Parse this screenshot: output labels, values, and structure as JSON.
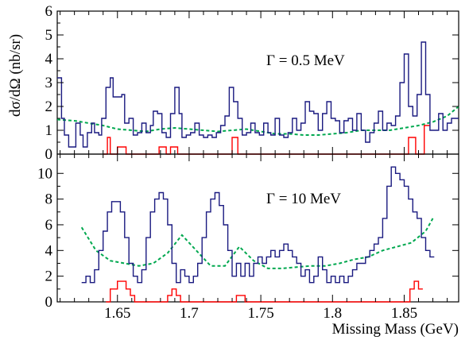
{
  "chart_data": {
    "type": "line",
    "xlabel": "Missing Mass (GeV)",
    "ylabel": "dσ/dΩ (nb/sr)",
    "xlim": [
      1.608,
      1.888
    ],
    "x_ticks": [
      1.65,
      1.7,
      1.75,
      1.8,
      1.85
    ],
    "x_tick_labels": [
      "1.65",
      "1.7",
      "1.75",
      "1.8",
      "1.85"
    ],
    "grid": false,
    "colors": {
      "data": "#1a1a80",
      "background": "#ff0000",
      "fit": "#00a84f"
    },
    "panels": [
      {
        "label": "Γ = 0.5 MeV",
        "ylim": [
          0,
          6
        ],
        "y_ticks": [
          0,
          1,
          2,
          3,
          4,
          5,
          6
        ],
        "y_tick_labels": [
          "0",
          "1",
          "2",
          "3",
          "4",
          "5",
          "6"
        ],
        "series": [
          {
            "role": "data",
            "style": "step",
            "x": [
              1.608,
              1.611,
              1.613,
              1.616,
              1.619,
              1.621,
              1.624,
              1.626,
              1.629,
              1.632,
              1.634,
              1.637,
              1.639,
              1.642,
              1.645,
              1.647,
              1.65,
              1.653,
              1.655,
              1.658,
              1.661,
              1.664,
              1.667,
              1.67,
              1.673,
              1.675,
              1.678,
              1.681,
              1.684,
              1.687,
              1.69,
              1.693,
              1.695,
              1.698,
              1.701,
              1.704,
              1.707,
              1.71,
              1.713,
              1.716,
              1.719,
              1.722,
              1.725,
              1.728,
              1.731,
              1.734,
              1.737,
              1.74,
              1.743,
              1.746,
              1.749,
              1.752,
              1.755,
              1.757,
              1.76,
              1.763,
              1.766,
              1.769,
              1.772,
              1.775,
              1.778,
              1.781,
              1.784,
              1.787,
              1.79,
              1.793,
              1.796,
              1.799,
              1.802,
              1.805,
              1.808,
              1.811,
              1.814,
              1.817,
              1.82,
              1.823,
              1.826,
              1.829,
              1.832,
              1.835,
              1.838,
              1.841,
              1.844,
              1.847,
              1.85,
              1.853,
              1.856,
              1.859,
              1.862,
              1.865,
              1.868,
              1.871,
              1.874,
              1.877,
              1.88,
              1.883,
              1.888
            ],
            "y": [
              3.2,
              1.5,
              0.8,
              0.3,
              0.3,
              1.3,
              0.8,
              0.3,
              0.9,
              1.3,
              0.9,
              0.8,
              1.5,
              2.8,
              3.2,
              2.4,
              2.4,
              2.5,
              1.3,
              1.5,
              0.8,
              0.9,
              1.3,
              0.9,
              1.2,
              1.8,
              1.7,
              0.9,
              0.7,
              1.7,
              2.8,
              1.7,
              0.7,
              0.8,
              0.9,
              1.3,
              0.8,
              0.7,
              0.8,
              0.7,
              0.9,
              1.2,
              1.6,
              2.8,
              2.2,
              1.5,
              0.8,
              0.9,
              1.3,
              0.9,
              0.8,
              1.3,
              0.9,
              0.8,
              1.5,
              0.8,
              0.7,
              0.9,
              1.5,
              1.0,
              1.3,
              2.2,
              1.8,
              1.7,
              1.0,
              1.7,
              2.2,
              1.5,
              1.4,
              0.9,
              1.4,
              1.5,
              1.0,
              1.7,
              1.0,
              0.5,
              0.9,
              1.3,
              1.8,
              1.0,
              1.3,
              1.2,
              1.6,
              3.0,
              4.2,
              2.0,
              1.6,
              2.5,
              4.7,
              2.5,
              1.0,
              1.0,
              1.7,
              1.0,
              1.3,
              1.5,
              1.5
            ]
          },
          {
            "role": "background",
            "style": "step",
            "x": [
              1.64,
              1.643,
              1.645,
              1.648,
              1.65,
              1.653,
              1.656,
              1.676,
              1.679,
              1.681,
              1.684,
              1.687,
              1.689,
              1.692,
              1.728,
              1.73,
              1.732,
              1.734,
              1.85,
              1.853,
              1.855,
              1.858,
              1.862,
              1.864,
              1.866,
              1.868
            ],
            "y": [
              0,
              0.7,
              0,
              0,
              0.3,
              0.3,
              0,
              0,
              0.3,
              0.3,
              0,
              0.3,
              0.3,
              0,
              0,
              0.7,
              0.7,
              0,
              0,
              0.7,
              0.7,
              0,
              0,
              1.2,
              1.2,
              0
            ]
          },
          {
            "role": "fit",
            "style": "line",
            "x": [
              1.608,
              1.62,
              1.63,
              1.64,
              1.65,
              1.66,
              1.67,
              1.68,
              1.69,
              1.7,
              1.71,
              1.72,
              1.73,
              1.74,
              1.75,
              1.76,
              1.77,
              1.78,
              1.79,
              1.8,
              1.81,
              1.82,
              1.83,
              1.84,
              1.85,
              1.86,
              1.87,
              1.88,
              1.888
            ],
            "y": [
              1.45,
              1.4,
              1.3,
              1.2,
              1.05,
              1.0,
              0.95,
              1.05,
              1.1,
              1.05,
              1.0,
              0.95,
              1.0,
              1.05,
              0.95,
              0.85,
              0.85,
              0.8,
              0.8,
              0.85,
              0.9,
              1.0,
              1.0,
              1.0,
              1.1,
              1.2,
              1.35,
              1.6,
              2.0
            ]
          }
        ]
      },
      {
        "label": "Γ = 10 MeV",
        "ylim": [
          0,
          11.5
        ],
        "y_ticks": [
          0,
          2,
          4,
          6,
          8,
          10
        ],
        "y_tick_labels": [
          "0",
          "2",
          "4",
          "6",
          "8",
          "10"
        ],
        "series": [
          {
            "role": "data",
            "style": "step",
            "x": [
              1.625,
              1.628,
              1.631,
              1.634,
              1.637,
              1.64,
              1.643,
              1.646,
              1.649,
              1.652,
              1.655,
              1.658,
              1.661,
              1.664,
              1.667,
              1.67,
              1.673,
              1.676,
              1.679,
              1.682,
              1.685,
              1.688,
              1.691,
              1.694,
              1.697,
              1.7,
              1.703,
              1.706,
              1.709,
              1.712,
              1.715,
              1.718,
              1.721,
              1.724,
              1.727,
              1.73,
              1.733,
              1.736,
              1.739,
              1.742,
              1.745,
              1.748,
              1.751,
              1.754,
              1.757,
              1.76,
              1.763,
              1.766,
              1.769,
              1.772,
              1.775,
              1.778,
              1.781,
              1.784,
              1.787,
              1.79,
              1.793,
              1.796,
              1.799,
              1.802,
              1.805,
              1.808,
              1.811,
              1.814,
              1.817,
              1.82,
              1.823,
              1.826,
              1.829,
              1.832,
              1.835,
              1.838,
              1.841,
              1.844,
              1.847,
              1.85,
              1.853,
              1.856,
              1.859,
              1.862,
              1.865,
              1.868,
              1.871
            ],
            "y": [
              1.5,
              2.0,
              1.5,
              2.5,
              4.0,
              5.5,
              7.0,
              7.8,
              7.8,
              7.0,
              5.0,
              3.0,
              2.0,
              1.5,
              2.5,
              5.0,
              7.0,
              8.0,
              8.5,
              8.0,
              6.0,
              3.0,
              1.5,
              2.5,
              2.0,
              1.5,
              2.0,
              3.0,
              5.0,
              7.0,
              8.0,
              8.5,
              7.5,
              6.0,
              4.0,
              2.0,
              3.0,
              2.0,
              3.0,
              2.0,
              3.0,
              3.5,
              3.0,
              3.5,
              4.0,
              3.5,
              4.0,
              4.5,
              4.0,
              3.5,
              3.0,
              2.0,
              2.5,
              1.5,
              2.0,
              3.5,
              2.5,
              1.5,
              2.0,
              1.5,
              2.0,
              1.5,
              2.0,
              2.5,
              3.0,
              3.0,
              3.5,
              4.0,
              4.5,
              5.0,
              6.5,
              9.0,
              10.5,
              10.0,
              9.5,
              9.0,
              8.0,
              7.0,
              6.5,
              5.0,
              4.0,
              3.5,
              10.2
            ]
          },
          {
            "role": "background",
            "style": "step",
            "x": [
              1.642,
              1.645,
              1.647,
              1.65,
              1.653,
              1.656,
              1.659,
              1.662,
              1.682,
              1.685,
              1.688,
              1.691,
              1.694,
              1.73,
              1.733,
              1.736,
              1.739,
              1.851,
              1.854,
              1.857,
              1.86,
              1.863
            ],
            "y": [
              0,
              1.0,
              1.0,
              1.6,
              1.6,
              1.0,
              0.5,
              0,
              0,
              0.5,
              1.0,
              0.5,
              0,
              0,
              0.5,
              0.5,
              0,
              0,
              1.0,
              1.6,
              1.0,
              0
            ]
          },
          {
            "role": "fit",
            "style": "line",
            "x": [
              1.625,
              1.635,
              1.645,
              1.655,
              1.665,
              1.675,
              1.685,
              1.695,
              1.705,
              1.715,
              1.725,
              1.735,
              1.745,
              1.755,
              1.765,
              1.775,
              1.785,
              1.795,
              1.805,
              1.815,
              1.825,
              1.835,
              1.845,
              1.855,
              1.865,
              1.87
            ],
            "y": [
              5.8,
              4.0,
              3.2,
              3.0,
              2.8,
              3.0,
              3.8,
              5.2,
              4.0,
              2.8,
              2.8,
              4.3,
              3.2,
              2.6,
              2.6,
              2.7,
              2.8,
              2.8,
              3.0,
              3.3,
              3.5,
              4.0,
              4.3,
              4.6,
              5.5,
              6.5
            ]
          }
        ]
      }
    ]
  }
}
